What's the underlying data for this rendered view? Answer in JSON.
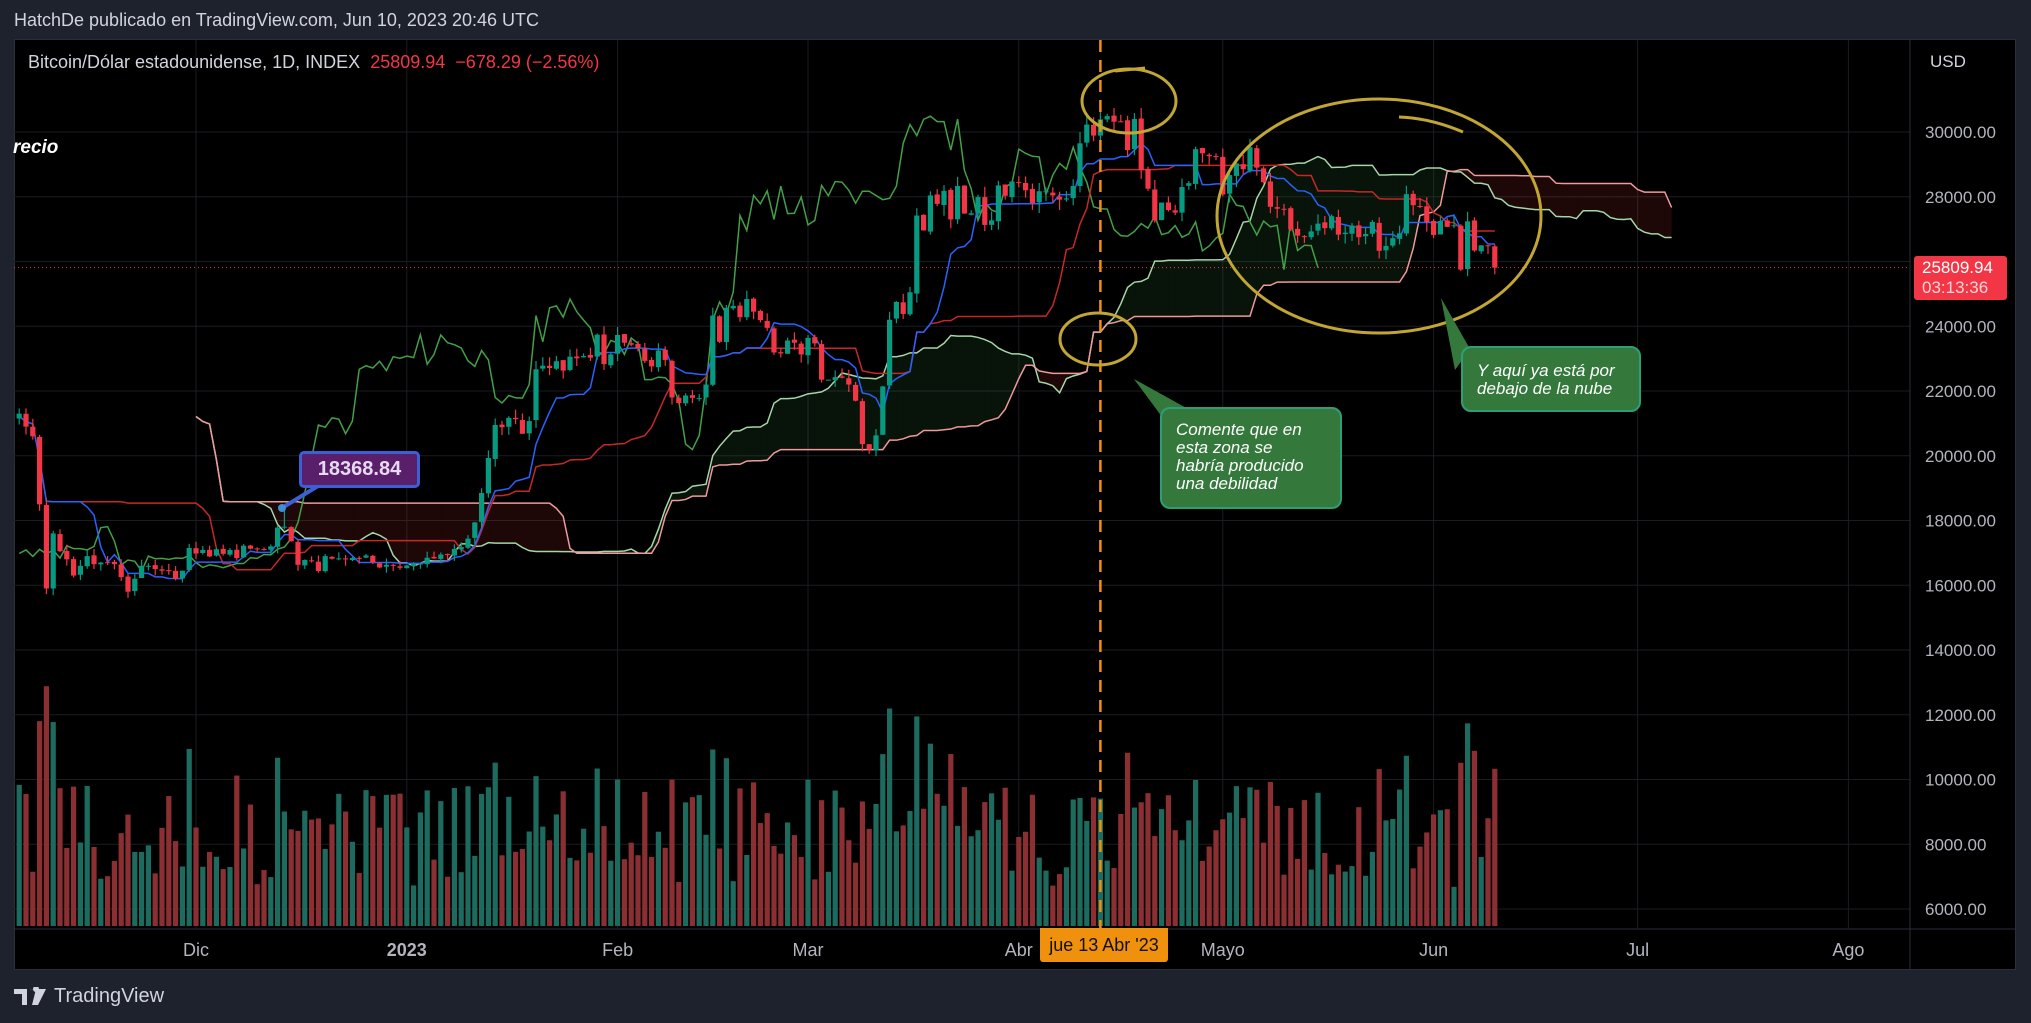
{
  "header": {
    "published": "HatchDe publicado en TradingView.com, Jun 10, 2023 20:46 UTC"
  },
  "legend": {
    "symbol": "Bitcoin/Dólar estadounidense, 1D, INDEX",
    "last": "25809.94",
    "change": "−678.29 (−2.56%)"
  },
  "left_label": "recio",
  "price_axis": {
    "currency": "USD",
    "last_price": "25809.94",
    "countdown": "03:13:36"
  },
  "crosshair_date": "jue 13 Abr '23",
  "price_callout": "18368.84",
  "callouts": [
    {
      "text": "Comente que  en\nesta zona se\nhabría producido\nuna debilidad"
    },
    {
      "text": "Y aquí ya está por\ndebajo de la nube"
    }
  ],
  "logo": {
    "text": "TradingView"
  },
  "colors": {
    "up": "#089981",
    "down": "#f23645",
    "tenkan": "#2962ff",
    "kijun": "#b71c1c",
    "chikou": "#43a047",
    "span_a": "#a5d6a7",
    "span_b": "#ef9a9a",
    "annotation": "#c2a633",
    "crosshair": "#f0910d"
  },
  "chart_data": {
    "type": "candlestick",
    "title": "Bitcoin/Dólar estadounidense, 1D, INDEX",
    "indicator": "Ichimoku Cloud (9, 26, 52, 26)",
    "start_date": "2022-11-05",
    "closes": [
      21300,
      20900,
      20600,
      18500,
      15900,
      17600,
      17050,
      16800,
      16300,
      16600,
      16900,
      16650,
      16700,
      16700,
      16650,
      16250,
      15800,
      16200,
      16600,
      16600,
      16500,
      16450,
      16450,
      16200,
      16450,
      17150,
      16980,
      17090,
      16890,
      17110,
      16970,
      17090,
      16840,
      17220,
      17130,
      17130,
      17090,
      17200,
      17780,
      17810,
      17360,
      16630,
      16780,
      16740,
      16440,
      16900,
      16820,
      16830,
      16800,
      16840,
      16830,
      16920,
      16700,
      16550,
      16630,
      16600,
      16540,
      16610,
      16670,
      16670,
      16850,
      16830,
      16950,
      16940,
      17120,
      17180,
      17440,
      17940,
      18850,
      19930,
      20950,
      20880,
      21170,
      21130,
      20680,
      21070,
      22670,
      22780,
      22710,
      22920,
      22630,
      23060,
      23010,
      23080,
      23030,
      23740,
      22830,
      23130,
      23730,
      23490,
      23430,
      23330,
      22930,
      22760,
      23250,
      22960,
      21800,
      21630,
      21860,
      21790,
      21780,
      22200,
      24330,
      23520,
      24570,
      24630,
      24280,
      24840,
      24450,
      24190,
      23950,
      23190,
      23160,
      23560,
      23490,
      23130,
      23640,
      23470,
      22350,
      22350,
      22430,
      22410,
      22200,
      21700,
      20360,
      20190,
      20630,
      22140,
      24200,
      24750,
      24380,
      25050,
      27420,
      26960,
      28040,
      27780,
      28180,
      27300,
      28330,
      27480,
      27490,
      27990,
      27130,
      27270,
      28350,
      28030,
      28470,
      28450,
      28200,
      27800,
      28170,
      28170,
      28040,
      27910,
      27950,
      28330,
      29650,
      30230,
      29890,
      30390,
      30490,
      30320,
      30320,
      29440,
      30400,
      28820,
      28250,
      27270,
      27820,
      27590,
      27510,
      28300,
      28420,
      29470,
      29340,
      29250,
      29230,
      28070,
      28670,
      29030,
      28850,
      29530,
      28900,
      28450,
      27690,
      27630,
      27620,
      26990,
      26800,
      26780,
      26930,
      27170,
      27030,
      27400,
      26830,
      26890,
      27110,
      26750,
      26850,
      27220,
      26330,
      26480,
      26720,
      26870,
      28080,
      27740,
      27700,
      27220,
      26820,
      27250,
      27070,
      27120,
      25750,
      27240,
      26340,
      26500,
      26490,
      25810
    ],
    "first_open": 21150,
    "highlighted_high": {
      "date": "2022-12-14",
      "value": 18368.84
    },
    "crosshair_date": "2023-04-13",
    "y_ticks": [
      30000,
      28000,
      26000,
      24000,
      22000,
      20000,
      18000,
      16000,
      14000,
      12000,
      10000,
      8000,
      6000
    ],
    "x_ticks": [
      {
        "label": "Dic",
        "day": 26
      },
      {
        "label": "2023",
        "day": 57,
        "bold": true
      },
      {
        "label": "Feb",
        "day": 88
      },
      {
        "label": "Mar",
        "day": 116
      },
      {
        "label": "Abr",
        "day": 147
      },
      {
        "label": "Mayo",
        "day": 177
      },
      {
        "label": "Jun",
        "day": 208
      },
      {
        "label": "Jul",
        "day": 238
      },
      {
        "label": "Ago",
        "day": 269
      }
    ],
    "ylim": [
      5000,
      32842
    ],
    "grid": true
  }
}
